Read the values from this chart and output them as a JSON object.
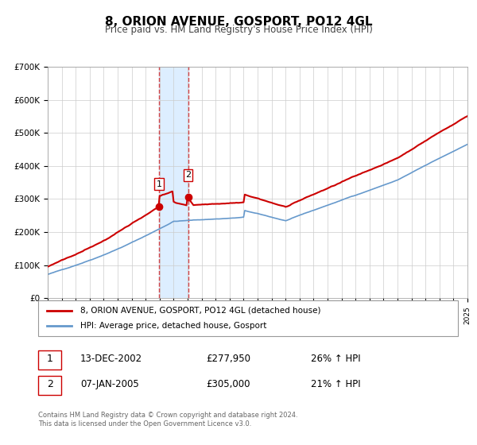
{
  "title": "8, ORION AVENUE, GOSPORT, PO12 4GL",
  "subtitle": "Price paid vs. HM Land Registry's House Price Index (HPI)",
  "legend_line1": "8, ORION AVENUE, GOSPORT, PO12 4GL (detached house)",
  "legend_line2": "HPI: Average price, detached house, Gosport",
  "sale1_label": "1",
  "sale1_date": "13-DEC-2002",
  "sale1_price": "£277,950",
  "sale1_hpi": "26% ↑ HPI",
  "sale2_label": "2",
  "sale2_date": "07-JAN-2005",
  "sale2_price": "£305,000",
  "sale2_hpi": "21% ↑ HPI",
  "sale1_year": 2002.96,
  "sale1_value": 277950,
  "sale2_year": 2005.03,
  "sale2_value": 305000,
  "footer1": "Contains HM Land Registry data © Crown copyright and database right 2024.",
  "footer2": "This data is licensed under the Open Government Licence v3.0.",
  "red_color": "#cc0000",
  "blue_color": "#6699cc",
  "shade_color": "#ddeeff",
  "grid_color": "#cccccc",
  "background_color": "#ffffff",
  "ylim": [
    0,
    700000
  ],
  "xmin": 1995,
  "xmax": 2025
}
